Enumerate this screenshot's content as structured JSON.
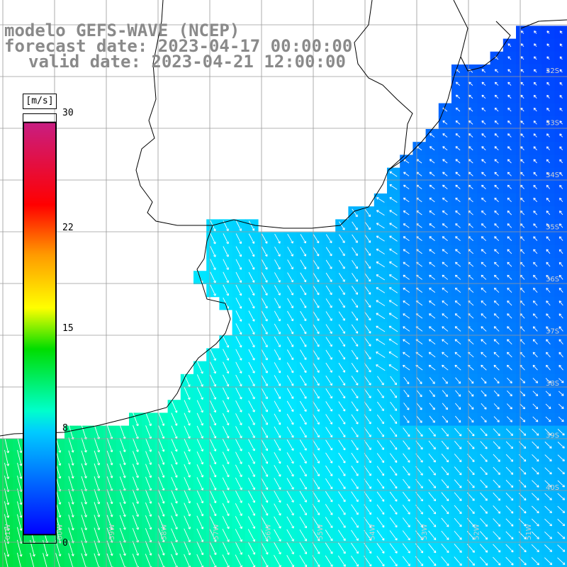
{
  "titles": {
    "line1": "modelo GEFS-WAVE (NCEP)",
    "line2": "forecast date: 2023-04-17 00:00:00",
    "line3": "valid date: 2023-04-21 12:00:00"
  },
  "colorbar": {
    "unit": "[m/s]",
    "ticks": [
      {
        "value": 30,
        "label": "30"
      },
      {
        "value": 22,
        "label": "22"
      },
      {
        "value": 15,
        "label": "15"
      },
      {
        "value": 8,
        "label": "8"
      },
      {
        "value": 0,
        "label": "0"
      }
    ],
    "palette": [
      "#0000ff",
      "#00c8ff",
      "#00ff7a",
      "#00cc00",
      "#ffff00",
      "#ff8000",
      "#ff0000",
      "#c81e78"
    ]
  },
  "lat_labels": [
    "32S",
    "33S",
    "34S",
    "35S",
    "36S",
    "37S",
    "38S",
    "39S",
    "40S"
  ],
  "lon_labels": [
    "61W",
    "60W",
    "59W",
    "58W",
    "57W",
    "56W",
    "55W",
    "54W",
    "53W",
    "52W",
    "51W"
  ],
  "field_summary": {
    "variable": "wind speed",
    "units": "m/s",
    "range_displayed": [
      0,
      30
    ]
  }
}
